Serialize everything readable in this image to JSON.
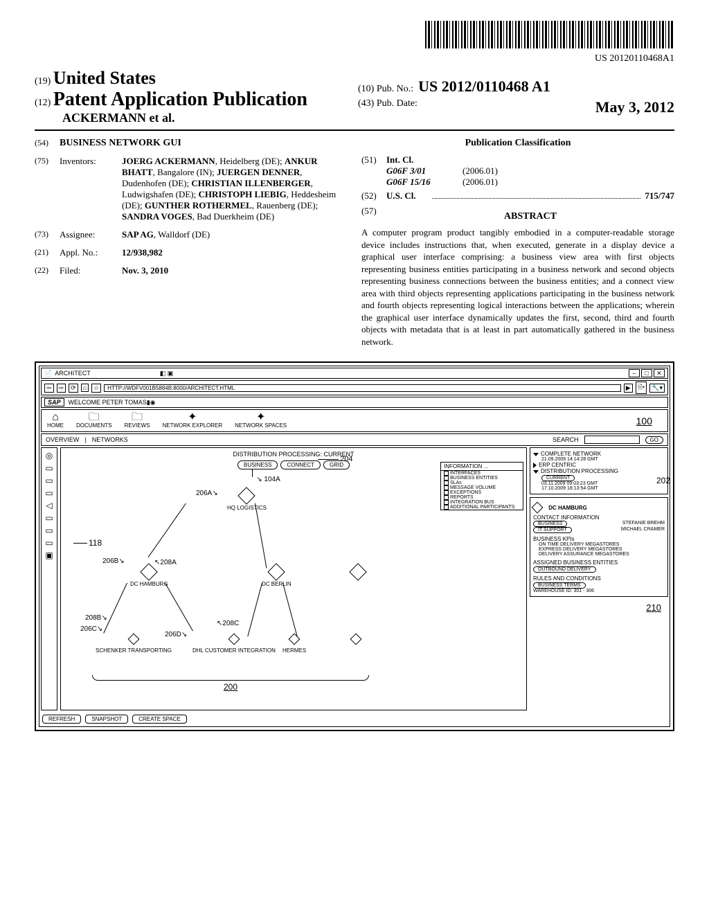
{
  "barcode_text": "US 20120110468A1",
  "header": {
    "code19": "(19)",
    "country": "United States",
    "code12": "(12)",
    "pub_type": "Patent Application Publication",
    "authors": "ACKERMANN et al.",
    "code10": "(10)",
    "pubno_label": "Pub. No.:",
    "pubno": "US 2012/0110468 A1",
    "code43": "(43)",
    "pubdate_label": "Pub. Date:",
    "pubdate": "May 3, 2012"
  },
  "left": {
    "title_code": "(54)",
    "title": "BUSINESS NETWORK GUI",
    "inv_code": "(75)",
    "inv_label": "Inventors:",
    "inventors": "<span class='inv-name'>JOERG ACKERMANN</span>, Heidelberg (DE); <span class='inv-name'>ANKUR BHATT</span>, Bangalore (IN); <span class='inv-name'>JUERGEN DENNER</span>, Dudenhofen (DE); <span class='inv-name'>CHRISTIAN ILLENBERGER</span>, Ludwigshafen (DE); <span class='inv-name'>CHRISTOPH LIEBIG</span>, Heddesheim (DE); <span class='inv-name'>GUNTHER ROTHERMEL</span>, Rauenberg (DE); <span class='inv-name'>SANDRA VOGES</span>, Bad Duerkheim (DE)",
    "asn_code": "(73)",
    "asn_label": "Assignee:",
    "assignee": "<span class='inv-name'>SAP AG</span>, Walldorf (DE)",
    "app_code": "(21)",
    "app_label": "Appl. No.:",
    "appno": "12/938,982",
    "filed_code": "(22)",
    "filed_label": "Filed:",
    "filed": "Nov. 3, 2010"
  },
  "right": {
    "class_title": "Publication Classification",
    "int_code": "(51)",
    "int_label": "Int. Cl.",
    "int1_code": "G06F 3/01",
    "int1_year": "(2006.01)",
    "int2_code": "G06F 15/16",
    "int2_year": "(2006.01)",
    "us_code": "(52)",
    "us_label": "U.S. Cl.",
    "us_val": "715/747",
    "abs_code": "(57)",
    "abs_title": "ABSTRACT",
    "abstract": "A computer program product tangibly embodied in a computer-readable storage device includes instructions that, when executed, generate in a display device a graphical user interface comprising: a business view area with first objects representing business entities participating in a business network and second objects representing business connections between the business entities; and a connect view area with third objects representing applications participating in the business network and fourth objects representing logical interactions between the applications; wherein the graphical user interface dynamically updates the first, second, third and fourth objects with metadata that is at least in part automatically gathered in the business network."
  },
  "figure": {
    "title": "ARCHITECT",
    "url": "HTTP://WDFV001B5884B:8000/ARCHITECT.HTML",
    "welcome": "WELCOME PETER TOMAS",
    "sap": "SAP",
    "tabs": [
      "HOME",
      "DOCUMENTS",
      "REVIEWS",
      "NETWORK EXPLORER",
      "NETWORK SPACES"
    ],
    "ref100": "100",
    "subtabs": {
      "overview": "OVERVIEW",
      "networks": "NETWORKS",
      "search": "SEARCH",
      "go": "GO"
    },
    "canvas_title": "DISTRIBUTION PROCESSING: CURRENT",
    "pills": [
      "BUSINESS",
      "CONNECT",
      "GRID"
    ],
    "ref204": "204",
    "ref104a": "104A",
    "ref118": "118",
    "nodes": {
      "hq": "HQ LOGISTICS",
      "dch": "DC HAMBURG",
      "dcb": "DC BERLIN",
      "sch": "SCHENKER TRANSPORTING",
      "dhl": "DHL CUSTOMER INTEGRATION",
      "her": "HERMES"
    },
    "refs": {
      "r206a": "206A",
      "r206b": "206B",
      "r208a": "208A",
      "r208b": "208B",
      "r206c": "206C",
      "r206d": "206D",
      "r208c": "208C"
    },
    "info": {
      "title": "INFORMATION ...",
      "items": [
        "INTERFACES",
        "BUSINESS ENTITIES",
        "SLAs",
        "MESSAGE VOLUME",
        "EXCEPTIONS",
        "REPORTS",
        "INTEGRATION BUS",
        "ADDITIONAL PARTICIPANTS"
      ]
    },
    "tree": {
      "complete": "COMPLETE NETWORK",
      "complete_date": "21.09.2009   14:14:28 GMT",
      "erp": "ERP CENTRIC",
      "dist": "DISTRIBUTION PROCESSING",
      "current": "CURRENT",
      "d1": "03.11.2009   09:03:23 GMT",
      "d2": "17.10.2009   18:13:54 GMT",
      "ref202": "202"
    },
    "dc_hamburg": "DC HAMBURG",
    "contact": {
      "title": "CONTACT INFORMATION",
      "business": "BUSINESS",
      "bname": "STEFANIE BREHM",
      "it": "IT SUPPORT",
      "iname": "MICHAEL CRAMER"
    },
    "kpis": {
      "title": "BUSINESS KPIs",
      "k1": "ON TIME DELIVERY MEGASTORES",
      "k2": "EXPRESS DELIVERY MEGASTORES",
      "k3": "DELIVERY ASSURANCE MEGASTORES"
    },
    "abe": {
      "title": "ASSIGNED BUSINESS ENTITIES",
      "pill": "OUTBOUND DELIVERY"
    },
    "rules": {
      "title": "RULES AND CONDITIONS",
      "pill": "BUSINESS TERMS",
      "wh": "WAREHOUSE ID: 301 - 306"
    },
    "ref210": "210",
    "ref200": "200",
    "footer": [
      "REFRESH",
      "SNAPSHOT",
      "CREATE SPACE"
    ]
  }
}
